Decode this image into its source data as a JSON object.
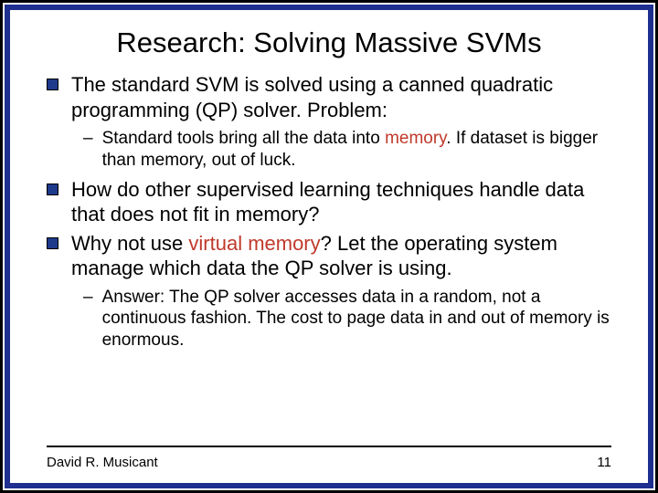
{
  "colors": {
    "frame_outer": "#000000",
    "frame_inner": "#1e2f8f",
    "bullet_fill": "#1e3a8a",
    "bullet_border": "#000000",
    "text": "#000000",
    "highlight": "#c0392b",
    "background": "#ffffff",
    "footer_rule": "#000000"
  },
  "typography": {
    "title_fontsize": 31,
    "main_fontsize": 22,
    "sub_fontsize": 19,
    "footer_fontsize": 15,
    "font_family": "Arial"
  },
  "title": "Research: Solving Massive SVMs",
  "bullets": [
    {
      "pre": "The standard SVM is solved using a canned quadratic programming (QP) solver. Problem:",
      "hl": "",
      "post": ""
    },
    {
      "pre": "How do other supervised learning techniques handle data that does not fit in memory?",
      "hl": "",
      "post": ""
    },
    {
      "pre": "Why not use ",
      "hl": "virtual memory",
      "post": "? Let the operating system manage which data the QP solver is using."
    }
  ],
  "subbullets_a": [
    {
      "pre": "Standard tools bring all the data into ",
      "hl": "memory",
      "post": ". If dataset is bigger than memory, out of luck."
    }
  ],
  "subbullets_b": [
    {
      "pre": "Answer: The QP solver accesses data in a random, not a continuous fashion. The cost to page data in and out of memory is enormous.",
      "hl": "",
      "post": ""
    }
  ],
  "footer": {
    "author": "David R. Musicant",
    "page": "11"
  }
}
